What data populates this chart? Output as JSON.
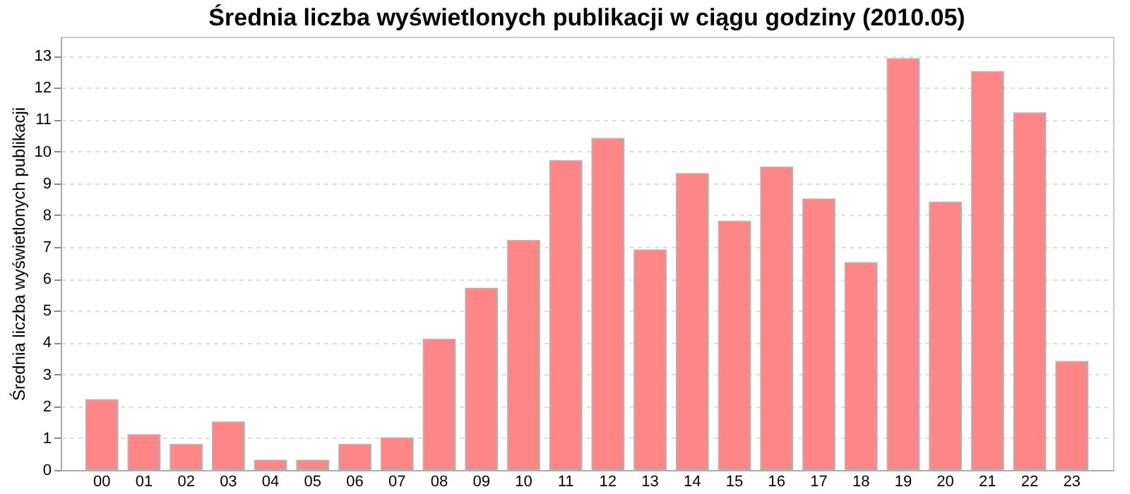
{
  "chart_data": {
    "type": "bar",
    "title": "Średnia liczba wyświetlonych publikacji w ciągu godziny (2010.05)",
    "ylabel": "Średnia liczba wyświetlonych publikacji",
    "categories": [
      "00",
      "01",
      "02",
      "03",
      "04",
      "05",
      "06",
      "07",
      "08",
      "09",
      "10",
      "11",
      "12",
      "13",
      "14",
      "15",
      "16",
      "17",
      "18",
      "19",
      "20",
      "21",
      "22",
      "23"
    ],
    "values": [
      2.2,
      1.1,
      0.8,
      1.5,
      0.3,
      0.3,
      0.8,
      1.0,
      4.1,
      5.7,
      7.2,
      9.7,
      10.4,
      6.9,
      9.3,
      7.8,
      9.5,
      8.5,
      6.5,
      12.9,
      8.4,
      12.5,
      11.2,
      3.4
    ],
    "color": "#ff8080",
    "ylim": [
      0,
      13.6
    ],
    "yticks": [
      0,
      1,
      2,
      3,
      4,
      5,
      6,
      7,
      8,
      9,
      10,
      11,
      12,
      13
    ],
    "grid": "y"
  }
}
